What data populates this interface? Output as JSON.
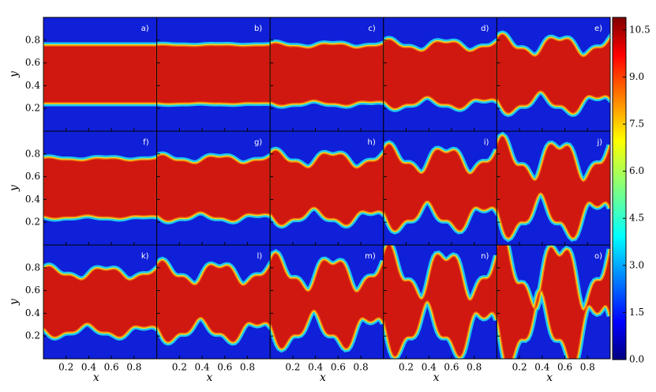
{
  "figure": {
    "panels": [
      {
        "label": "a)"
      },
      {
        "label": "b)"
      },
      {
        "label": "c)"
      },
      {
        "label": "d)"
      },
      {
        "label": "e)"
      },
      {
        "label": "f)"
      },
      {
        "label": "g)"
      },
      {
        "label": "h)"
      },
      {
        "label": "i)"
      },
      {
        "label": "j)"
      },
      {
        "label": "k)"
      },
      {
        "label": "l)"
      },
      {
        "label": "m)"
      },
      {
        "label": "n)"
      },
      {
        "label": "o)"
      }
    ],
    "xlabel": "x",
    "ylabel": "y",
    "xlim": [
      0,
      1
    ],
    "ylim": [
      0,
      1
    ],
    "xticks": [
      0.2,
      0.4,
      0.6,
      0.8
    ],
    "yticks": [
      0.2,
      0.4,
      0.6,
      0.8
    ],
    "colorbar": {
      "lim": [
        0,
        10.9
      ],
      "ticks": [
        {
          "value": 0,
          "label": "0.0"
        },
        {
          "value": 1.5,
          "label": "1.5"
        },
        {
          "value": 3,
          "label": "3.0"
        },
        {
          "value": 4.5,
          "label": "4.5"
        },
        {
          "value": 6,
          "label": "6.0"
        },
        {
          "value": 7.5,
          "label": "7.5"
        },
        {
          "value": 9,
          "label": "9.0"
        },
        {
          "value": 10.5,
          "label": "10.5"
        }
      ]
    }
  }
}
